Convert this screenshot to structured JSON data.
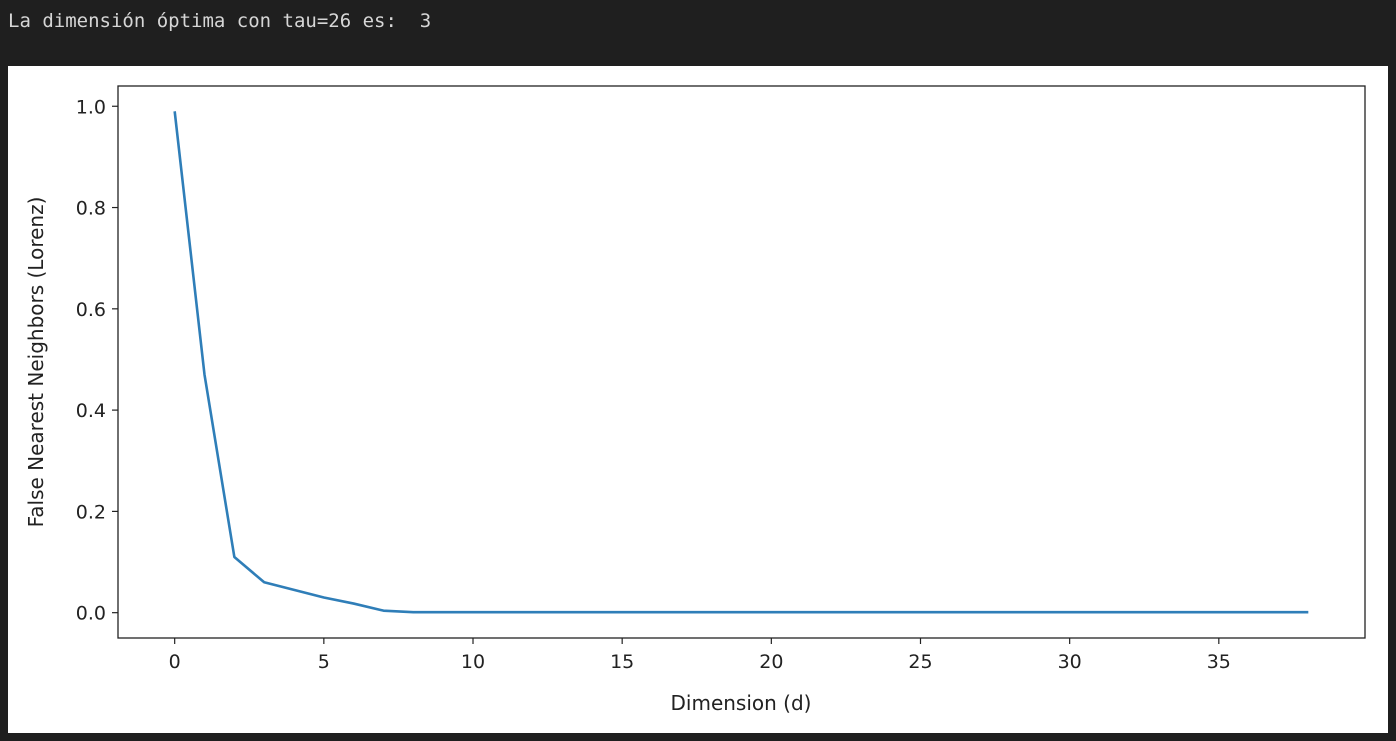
{
  "output": {
    "text": "La dimensión óptima con tau=26 es:  3"
  },
  "chart_data": {
    "type": "line",
    "title": "",
    "xlabel": "Dimension (d)",
    "ylabel": "False Nearest Neighbors (Lorenz)",
    "xlim": [
      -1.9,
      39.9
    ],
    "ylim": [
      -0.05,
      1.04
    ],
    "x_ticks": [
      0,
      5,
      10,
      15,
      20,
      25,
      30,
      35
    ],
    "x_tick_labels": [
      "0",
      "5",
      "10",
      "15",
      "20",
      "25",
      "30",
      "35"
    ],
    "y_ticks": [
      0.0,
      0.2,
      0.4,
      0.6,
      0.8,
      1.0
    ],
    "y_tick_labels": [
      "0.0",
      "0.2",
      "0.4",
      "0.6",
      "0.8",
      "1.0"
    ],
    "grid": false,
    "series": [
      {
        "color": "#2f7eb8",
        "x": [
          0,
          1,
          2,
          3,
          4,
          5,
          6,
          7,
          8,
          9,
          10,
          11,
          12,
          13,
          14,
          15,
          16,
          17,
          18,
          19,
          20,
          21,
          22,
          23,
          24,
          25,
          26,
          27,
          28,
          29,
          30,
          31,
          32,
          33,
          34,
          35,
          36,
          37,
          38
        ],
        "y": [
          0.99,
          0.47,
          0.11,
          0.06,
          0.045,
          0.03,
          0.018,
          0.004,
          0.001,
          0.001,
          0.001,
          0.001,
          0.001,
          0.001,
          0.001,
          0.001,
          0.001,
          0.001,
          0.001,
          0.001,
          0.001,
          0.001,
          0.001,
          0.001,
          0.001,
          0.001,
          0.001,
          0.001,
          0.001,
          0.001,
          0.001,
          0.001,
          0.001,
          0.001,
          0.001,
          0.001,
          0.001,
          0.001,
          0.001
        ]
      }
    ]
  }
}
